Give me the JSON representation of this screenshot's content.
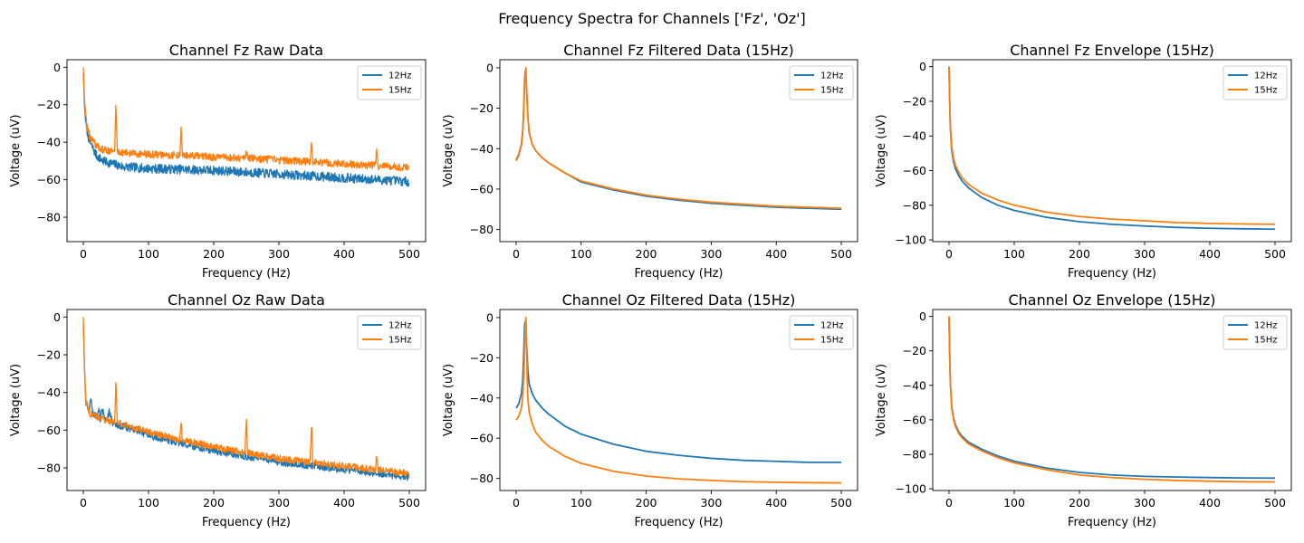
{
  "figure": {
    "suptitle": "Frequency Spectra for Channels ['Fz', 'Oz']"
  },
  "colors": {
    "series_12": "#1f77b4",
    "series_15": "#ff7f0e"
  },
  "chart_data": [
    {
      "type": "line",
      "title": "Channel Fz Raw Data",
      "xlabel": "Frequency (Hz)",
      "ylabel": "Voltage (uV)",
      "xlim": [
        -25,
        525
      ],
      "ylim": [
        -93,
        4
      ],
      "xticks": [
        0,
        100,
        200,
        300,
        400,
        500
      ],
      "yticks": [
        0,
        -20,
        -40,
        -60,
        -80
      ],
      "legend": "top-right",
      "grid": false,
      "series": [
        {
          "name": "12Hz",
          "x": [
            0,
            2,
            5,
            10,
            20,
            30,
            40,
            50,
            60,
            80,
            100,
            150,
            200,
            250,
            300,
            350,
            400,
            450,
            500
          ],
          "y": [
            -3,
            -22,
            -33,
            -40,
            -47,
            -50,
            -51,
            -52,
            -53,
            -53.5,
            -54,
            -54.5,
            -55,
            -56,
            -57,
            -58,
            -59,
            -60,
            -61
          ],
          "noise": 2.5
        },
        {
          "name": "15Hz",
          "x": [
            0,
            2,
            5,
            10,
            20,
            30,
            40,
            48,
            50,
            52,
            60,
            80,
            100,
            148,
            150,
            152,
            200,
            248,
            250,
            252,
            300,
            348,
            350,
            352,
            400,
            448,
            450,
            452,
            500
          ],
          "y": [
            0,
            -18,
            -30,
            -37,
            -42,
            -44,
            -44.5,
            -45,
            -19,
            -45,
            -45.5,
            -46,
            -46.5,
            -47,
            -33,
            -47,
            -48,
            -48.5,
            -43,
            -48.5,
            -49.5,
            -50.5,
            -38,
            -50.5,
            -51.5,
            -52.5,
            -44,
            -52.5,
            -53.5
          ],
          "noise": 2.0
        }
      ]
    },
    {
      "type": "line",
      "title": "Channel Fz Filtered Data (15Hz)",
      "xlabel": "Frequency (Hz)",
      "ylabel": "Voltage (uV)",
      "xlim": [
        -25,
        525
      ],
      "ylim": [
        -86,
        4
      ],
      "xticks": [
        0,
        100,
        200,
        300,
        400,
        500
      ],
      "yticks": [
        0,
        -20,
        -40,
        -60,
        -80
      ],
      "legend": "top-right",
      "grid": false,
      "series": [
        {
          "name": "12Hz",
          "x": [
            0,
            4,
            8,
            10,
            12,
            13,
            14,
            15,
            16,
            18,
            20,
            25,
            30,
            40,
            50,
            75,
            100,
            150,
            200,
            250,
            300,
            350,
            400,
            450,
            500
          ],
          "y": [
            -45.5,
            -43,
            -38,
            -32,
            -18,
            -6,
            -2,
            -1,
            -10,
            -24,
            -32,
            -38,
            -41,
            -44.5,
            -47,
            -52,
            -56.5,
            -60.5,
            -63.5,
            -65.5,
            -67,
            -68,
            -69,
            -69.5,
            -70
          ],
          "noise": 0
        },
        {
          "name": "15Hz",
          "x": [
            0,
            4,
            8,
            10,
            12,
            13,
            14,
            15,
            16,
            18,
            20,
            25,
            30,
            40,
            50,
            75,
            100,
            150,
            200,
            250,
            300,
            350,
            400,
            450,
            500
          ],
          "y": [
            -46,
            -43.5,
            -38.5,
            -33,
            -20,
            -8,
            -3,
            0,
            -9,
            -24,
            -31.5,
            -38,
            -41,
            -44.5,
            -47,
            -52,
            -56,
            -60,
            -63,
            -65,
            -66.5,
            -67.5,
            -68.5,
            -69,
            -69.5
          ],
          "noise": 0
        }
      ]
    },
    {
      "type": "line",
      "title": "Channel Fz Envelope (15Hz)",
      "xlabel": "Frequency (Hz)",
      "ylabel": "Voltage (uV)",
      "xlim": [
        -25,
        525
      ],
      "ylim": [
        -101,
        4
      ],
      "xticks": [
        0,
        100,
        200,
        300,
        400,
        500
      ],
      "yticks": [
        0,
        -20,
        -40,
        -60,
        -80,
        -100
      ],
      "legend": "top-right",
      "grid": false,
      "series": [
        {
          "name": "12Hz",
          "x": [
            0,
            1,
            2,
            4,
            7,
            10,
            15,
            20,
            30,
            50,
            75,
            100,
            150,
            200,
            250,
            300,
            350,
            400,
            450,
            500
          ],
          "y": [
            0,
            -20,
            -35,
            -48,
            -55,
            -59,
            -63,
            -66,
            -70,
            -75.5,
            -80,
            -83,
            -87,
            -89.5,
            -91,
            -92,
            -92.8,
            -93.3,
            -93.6,
            -93.8
          ],
          "noise": 0
        },
        {
          "name": "15Hz",
          "x": [
            0,
            1,
            2,
            4,
            7,
            10,
            15,
            20,
            30,
            50,
            75,
            100,
            150,
            200,
            250,
            300,
            350,
            400,
            450,
            500
          ],
          "y": [
            0,
            -20,
            -34,
            -46,
            -53,
            -57,
            -61,
            -64,
            -68,
            -73,
            -77,
            -80,
            -84,
            -86.5,
            -88,
            -89,
            -90,
            -90.5,
            -90.8,
            -91
          ],
          "noise": 0
        }
      ]
    },
    {
      "type": "line",
      "title": "Channel Oz Raw Data",
      "xlabel": "Frequency (Hz)",
      "ylabel": "Voltage (uV)",
      "xlim": [
        -25,
        525
      ],
      "ylim": [
        -92,
        4
      ],
      "xticks": [
        0,
        100,
        200,
        300,
        400,
        500
      ],
      "yticks": [
        0,
        -20,
        -40,
        -60,
        -80
      ],
      "legend": "top-right",
      "grid": false,
      "series": [
        {
          "name": "12Hz",
          "x": [
            0,
            2,
            4,
            8,
            10,
            12,
            14,
            20,
            24,
            26,
            28,
            35,
            40,
            45,
            50,
            60,
            80,
            100,
            150,
            200,
            250,
            300,
            350,
            400,
            450,
            500
          ],
          "y": [
            -3,
            -30,
            -46,
            -50,
            -47,
            -42,
            -51,
            -53,
            -48,
            -55,
            -48,
            -55,
            -50,
            -56,
            -57,
            -58,
            -60,
            -63,
            -67,
            -71,
            -74,
            -77,
            -79,
            -81,
            -83,
            -85
          ],
          "noise": 1.8
        },
        {
          "name": "15Hz",
          "x": [
            0,
            2,
            4,
            8,
            10,
            20,
            30,
            40,
            48,
            50,
            52,
            60,
            80,
            100,
            148,
            150,
            152,
            200,
            248,
            250,
            252,
            300,
            348,
            350,
            352,
            400,
            448,
            450,
            452,
            500
          ],
          "y": [
            0,
            -28,
            -44,
            -49,
            -51,
            -53,
            -54,
            -55,
            -56,
            -33,
            -56,
            -57,
            -59,
            -61,
            -65,
            -55,
            -65,
            -69,
            -72,
            -53,
            -72,
            -75,
            -77,
            -56,
            -77,
            -79,
            -81,
            -73,
            -81,
            -83
          ],
          "noise": 1.8
        }
      ]
    },
    {
      "type": "line",
      "title": "Channel Oz Filtered Data (15Hz)",
      "xlabel": "Frequency (Hz)",
      "ylabel": "Voltage (uV)",
      "xlim": [
        -25,
        525
      ],
      "ylim": [
        -86,
        4
      ],
      "xticks": [
        0,
        100,
        200,
        300,
        400,
        500
      ],
      "yticks": [
        0,
        -20,
        -40,
        -60,
        -80
      ],
      "legend": "top-right",
      "grid": false,
      "series": [
        {
          "name": "12Hz",
          "x": [
            0,
            4,
            8,
            10,
            12,
            13,
            14,
            15,
            16,
            18,
            20,
            25,
            30,
            40,
            50,
            75,
            100,
            150,
            200,
            250,
            300,
            350,
            400,
            450,
            500
          ],
          "y": [
            -45,
            -43,
            -38,
            -32,
            -15,
            -4,
            -2,
            -3,
            -12,
            -26,
            -33,
            -38,
            -41,
            -45,
            -48,
            -54,
            -58,
            -63,
            -66.5,
            -68.5,
            -70,
            -71,
            -71.5,
            -72,
            -72
          ],
          "noise": 0
        },
        {
          "name": "15Hz",
          "x": [
            0,
            4,
            8,
            10,
            12,
            13,
            14,
            15,
            16,
            17,
            18,
            20,
            25,
            30,
            40,
            50,
            75,
            100,
            150,
            200,
            250,
            300,
            350,
            400,
            450,
            500
          ],
          "y": [
            -51,
            -49,
            -45,
            -40,
            -28,
            -16,
            -5,
            0,
            -12,
            -30,
            -40,
            -47,
            -53,
            -57,
            -61,
            -64,
            -69,
            -72.5,
            -76.5,
            -78.8,
            -80.2,
            -81,
            -81.6,
            -81.9,
            -82.1,
            -82.2
          ],
          "noise": 0
        }
      ]
    },
    {
      "type": "line",
      "title": "Channel Oz Envelope (15Hz)",
      "xlabel": "Frequency (Hz)",
      "ylabel": "Voltage (uV)",
      "xlim": [
        -25,
        525
      ],
      "ylim": [
        -101,
        4
      ],
      "xticks": [
        0,
        100,
        200,
        300,
        400,
        500
      ],
      "yticks": [
        0,
        -20,
        -40,
        -60,
        -80,
        -100
      ],
      "legend": "top-right",
      "grid": false,
      "series": [
        {
          "name": "12Hz",
          "x": [
            0,
            1,
            2,
            4,
            7,
            10,
            15,
            20,
            30,
            50,
            75,
            100,
            150,
            200,
            250,
            300,
            350,
            400,
            450,
            500
          ],
          "y": [
            0,
            -22,
            -38,
            -52,
            -59,
            -63,
            -67,
            -69.5,
            -73,
            -77,
            -81,
            -84,
            -88,
            -90.5,
            -92,
            -92.8,
            -93.2,
            -93.5,
            -93.7,
            -93.8
          ],
          "noise": 0
        },
        {
          "name": "15Hz",
          "x": [
            0,
            1,
            2,
            4,
            7,
            10,
            15,
            20,
            30,
            50,
            75,
            100,
            150,
            200,
            250,
            300,
            350,
            400,
            450,
            500
          ],
          "y": [
            0,
            -22,
            -38,
            -53,
            -60,
            -64,
            -68,
            -70.5,
            -74,
            -78,
            -82,
            -85,
            -89,
            -92,
            -93.5,
            -94.5,
            -95.2,
            -95.6,
            -95.9,
            -96
          ],
          "noise": 0
        }
      ]
    }
  ]
}
